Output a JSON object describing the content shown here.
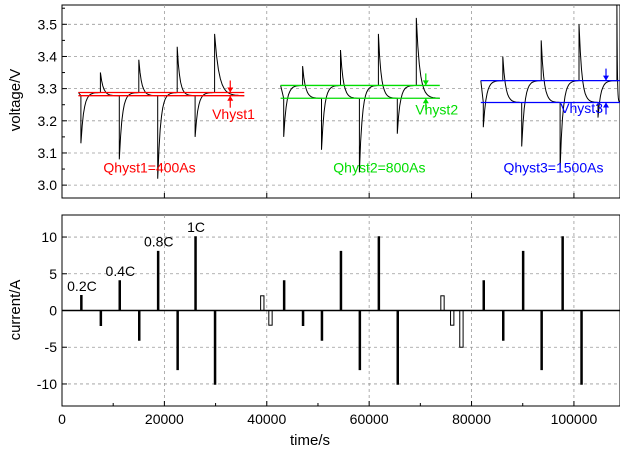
{
  "chart_data": [
    {
      "type": "line",
      "ylabel": "voltage/V",
      "xlim": [
        0,
        109000
      ],
      "ylim": [
        2.96,
        3.56
      ],
      "yticks": [
        "3.0",
        "3.1",
        "3.2",
        "3.3",
        "3.4",
        "3.5"
      ],
      "grid": true,
      "rest_level": 3.283,
      "series": [
        {
          "hyst_upper": 3.288,
          "hyst_lower": 3.278,
          "color": "#ff0000",
          "vhyst_label": "Vhyst1",
          "q_label": "Qhyst1=400As",
          "pulses": [
            {
              "t": 3700,
              "v": 3.13
            },
            {
              "t": 7500,
              "v": 3.35
            },
            {
              "t": 11200,
              "v": 3.08
            },
            {
              "t": 15000,
              "v": 3.39
            },
            {
              "t": 18700,
              "v": 3.02
            },
            {
              "t": 22500,
              "v": 3.43
            },
            {
              "t": 26000,
              "v": 3.15
            },
            {
              "t": 29800,
              "v": 3.47
            }
          ]
        },
        {
          "hyst_upper": 3.31,
          "hyst_lower": 3.27,
          "color": "#00dd00",
          "vhyst_label": "Vhyst2",
          "q_label": "Qhyst2=800As",
          "pulses": [
            {
              "t": 43300,
              "v": 3.15
            },
            {
              "t": 47000,
              "v": 3.37
            },
            {
              "t": 50700,
              "v": 3.11
            },
            {
              "t": 54400,
              "v": 3.42
            },
            {
              "t": 58100,
              "v": 3.04
            },
            {
              "t": 61800,
              "v": 3.47
            },
            {
              "t": 65500,
              "v": 3.16
            },
            {
              "t": 69200,
              "v": 3.52
            }
          ]
        },
        {
          "hyst_upper": 3.325,
          "hyst_lower": 3.257,
          "color": "#0000ff",
          "vhyst_label": "Vhyst3",
          "q_label": "Qhyst3=1500As",
          "pulses": [
            {
              "t": 82300,
              "v": 3.18
            },
            {
              "t": 86100,
              "v": 3.4
            },
            {
              "t": 89800,
              "v": 3.12
            },
            {
              "t": 93600,
              "v": 3.45
            },
            {
              "t": 97300,
              "v": 3.05
            },
            {
              "t": 101000,
              "v": 3.5
            },
            {
              "t": 104700,
              "v": 3.21
            },
            {
              "t": 108400,
              "v": 3.56
            }
          ]
        }
      ]
    },
    {
      "type": "line",
      "xlabel": "time/s",
      "ylabel": "current/A",
      "xlim": [
        0,
        109000
      ],
      "ylim": [
        -13,
        13
      ],
      "xticks": [
        "0",
        "20000",
        "40000",
        "60000",
        "80000",
        "100000"
      ],
      "xtick_values": [
        0,
        20000,
        40000,
        60000,
        80000,
        100000
      ],
      "yticks": [
        "-10",
        "-5",
        "0",
        "5",
        "10"
      ],
      "ytick_values": [
        -10,
        -5,
        0,
        5,
        10
      ],
      "grid": true,
      "pulses": [
        {
          "t": 3700,
          "i": 2
        },
        {
          "t": 7500,
          "i": -2
        },
        {
          "t": 11200,
          "i": 4
        },
        {
          "t": 15000,
          "i": -4
        },
        {
          "t": 18700,
          "i": 8
        },
        {
          "t": 22500,
          "i": -8
        },
        {
          "t": 26000,
          "i": 10
        },
        {
          "t": 29800,
          "i": -10
        },
        {
          "t": 43300,
          "i": 4
        },
        {
          "t": 47000,
          "i": -2
        },
        {
          "t": 50700,
          "i": -4
        },
        {
          "t": 54400,
          "i": 8
        },
        {
          "t": 58100,
          "i": -8
        },
        {
          "t": 61800,
          "i": 10
        },
        {
          "t": 65500,
          "i": -10
        },
        {
          "t": 82300,
          "i": 4
        },
        {
          "t": 86100,
          "i": -4
        },
        {
          "t": 90000,
          "i": 8
        },
        {
          "t": 93600,
          "i": -8
        },
        {
          "t": 97700,
          "i": 10
        },
        {
          "t": 101400,
          "i": -10
        }
      ],
      "hyst_steps": [
        {
          "t": 38800,
          "i": 2
        },
        {
          "t": 40400,
          "i": -2
        },
        {
          "t": 74000,
          "i": 2
        },
        {
          "t": 75900,
          "i": -2
        },
        {
          "t": 77700,
          "i": -5
        }
      ],
      "pulse_labels": [
        {
          "text": "0.2C",
          "t": 3700,
          "i": 2
        },
        {
          "text": "0.4C",
          "t": 11200,
          "i": 4
        },
        {
          "text": "0.8C",
          "t": 18700,
          "i": 8
        },
        {
          "text": "1C",
          "t": 26000,
          "i": 10
        }
      ]
    }
  ]
}
